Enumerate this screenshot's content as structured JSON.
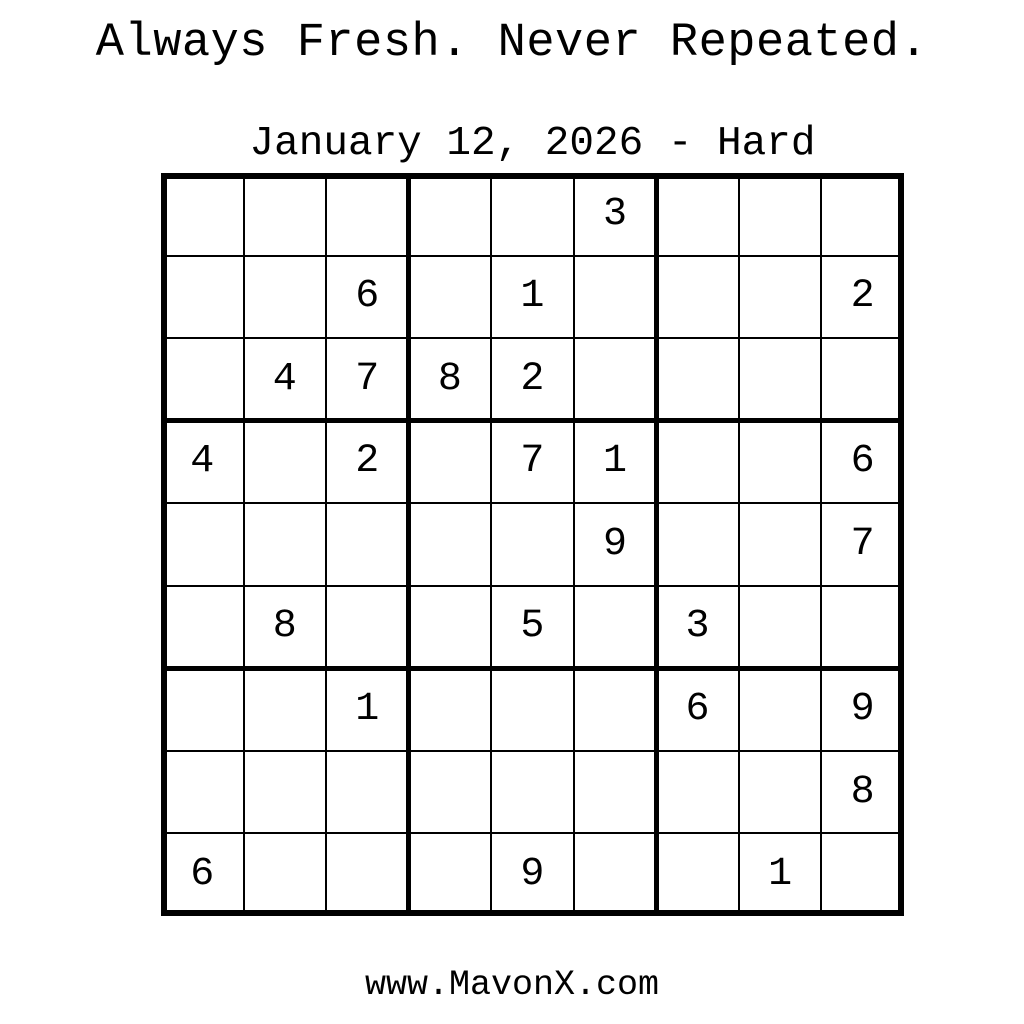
{
  "header": {
    "title": "Always Fresh. Never Repeated."
  },
  "puzzle": {
    "date": "January 12, 2026",
    "difficulty": "Hard",
    "heading": "January 12, 2026 - Hard",
    "grid": [
      [
        0,
        0,
        0,
        0,
        0,
        3,
        0,
        0,
        0
      ],
      [
        0,
        0,
        6,
        0,
        1,
        0,
        0,
        0,
        2
      ],
      [
        0,
        4,
        7,
        8,
        2,
        0,
        0,
        0,
        0
      ],
      [
        4,
        0,
        2,
        0,
        7,
        1,
        0,
        0,
        6
      ],
      [
        0,
        0,
        0,
        0,
        0,
        9,
        0,
        0,
        7
      ],
      [
        0,
        8,
        0,
        0,
        5,
        0,
        3,
        0,
        0
      ],
      [
        0,
        0,
        1,
        0,
        0,
        0,
        6,
        0,
        9
      ],
      [
        0,
        0,
        0,
        0,
        0,
        0,
        0,
        0,
        8
      ],
      [
        6,
        0,
        0,
        0,
        9,
        0,
        0,
        1,
        0
      ]
    ]
  },
  "footer": {
    "website": "www.MavonX.com"
  }
}
